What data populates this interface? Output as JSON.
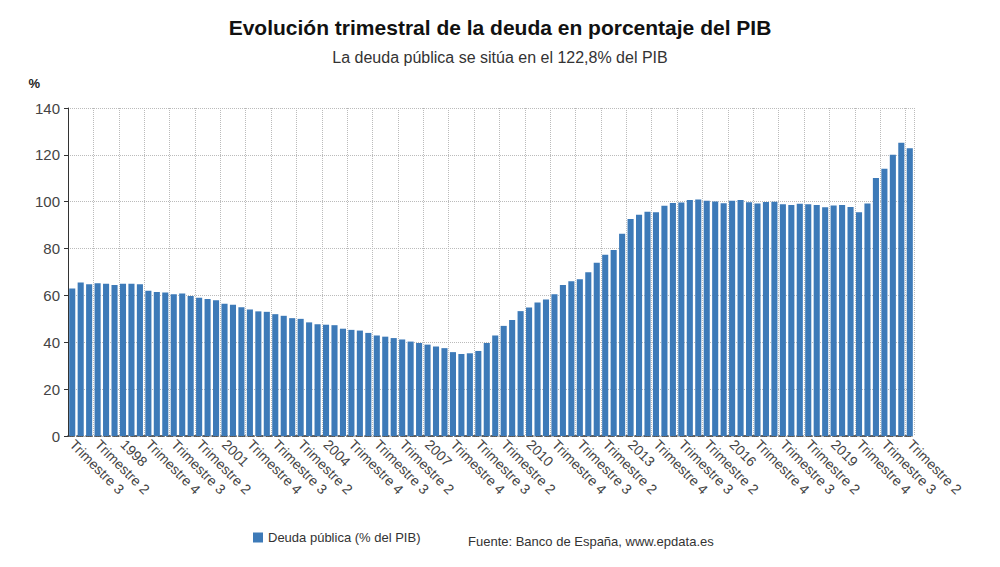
{
  "chart_data": {
    "type": "bar",
    "title": "Evolución trimestral de la deuda en porcentaje del PIB",
    "subtitle": "La deuda pública se sitúa en el 122,8% del PIB",
    "y_label": "%",
    "source": "Fuente: Banco de España, www.epdata.es",
    "categories": [
      "Trimestre 3",
      null,
      null,
      "Trimestre 2",
      null,
      null,
      "1998",
      null,
      null,
      "Trimestre 4",
      null,
      null,
      "Trimestre 3",
      null,
      null,
      "Trimestre 2",
      null,
      null,
      "2001",
      null,
      null,
      "Trimestre 4",
      null,
      null,
      "Trimestre 3",
      null,
      null,
      "Trimestre 2",
      null,
      null,
      "2004",
      null,
      null,
      "Trimestre 4",
      null,
      null,
      "Trimestre 3",
      null,
      null,
      "Trimestre 2",
      null,
      null,
      "2007",
      null,
      null,
      "Trimestre 4",
      null,
      null,
      "Trimestre 3",
      null,
      null,
      "Trimestre 2",
      null,
      null,
      "2010",
      null,
      null,
      "Trimestre 4",
      null,
      null,
      "Trimestre 3",
      null,
      null,
      "Trimestre 2",
      null,
      null,
      "2013",
      null,
      null,
      "Trimestre 4",
      null,
      null,
      "Trimestre 3",
      null,
      null,
      "Trimestre 2",
      null,
      null,
      "2016",
      null,
      null,
      "Trimestre 4",
      null,
      null,
      "Trimestre 3",
      null,
      null,
      "Trimestre 2",
      null,
      null,
      "2019",
      null,
      null,
      "Trimestre 4",
      null,
      null,
      "Trimestre 3",
      null,
      null,
      "Trimestre 2"
    ],
    "series": [
      {
        "name": "Deuda pública (% del PIB)",
        "color": "#3d7ab8",
        "values": [
          63,
          65.5,
          64.8,
          65.2,
          65,
          64.5,
          65,
          65,
          64.8,
          62,
          61.5,
          61.2,
          60.5,
          60.8,
          59.8,
          59,
          58.5,
          57.9,
          56.5,
          56,
          55,
          54,
          53.2,
          53,
          52,
          51.3,
          50.3,
          50,
          48.5,
          47.7,
          47.5,
          47.3,
          45.8,
          45.3,
          45,
          44,
          42.9,
          42.4,
          41.8,
          41.2,
          40.3,
          39.7,
          39,
          38.2,
          37.5,
          35.8,
          35,
          35.3,
          36.3,
          39.7,
          42.9,
          47,
          49.5,
          53.3,
          54.9,
          57,
          58.3,
          60.5,
          64.4,
          66,
          66.9,
          69.9,
          73.9,
          77.4,
          79.4,
          86.3,
          92.6,
          94.4,
          95.7,
          95.5,
          98.3,
          99.4,
          99.7,
          100.7,
          100.9,
          100.4,
          100.1,
          99.3,
          100.4,
          100.7,
          99.8,
          99.2,
          99.9,
          100,
          98.9,
          98.6,
          99.1,
          98.9,
          98.6,
          97.6,
          98.4,
          98.6,
          97.7,
          95.5,
          99.2,
          110.1,
          114.1,
          120,
          125.2,
          122.8
        ]
      }
    ],
    "ylim": [
      0,
      140
    ],
    "yticks": [
      0,
      20,
      40,
      60,
      80,
      100,
      120,
      140
    ],
    "grid": true,
    "legend": "bottom"
  }
}
